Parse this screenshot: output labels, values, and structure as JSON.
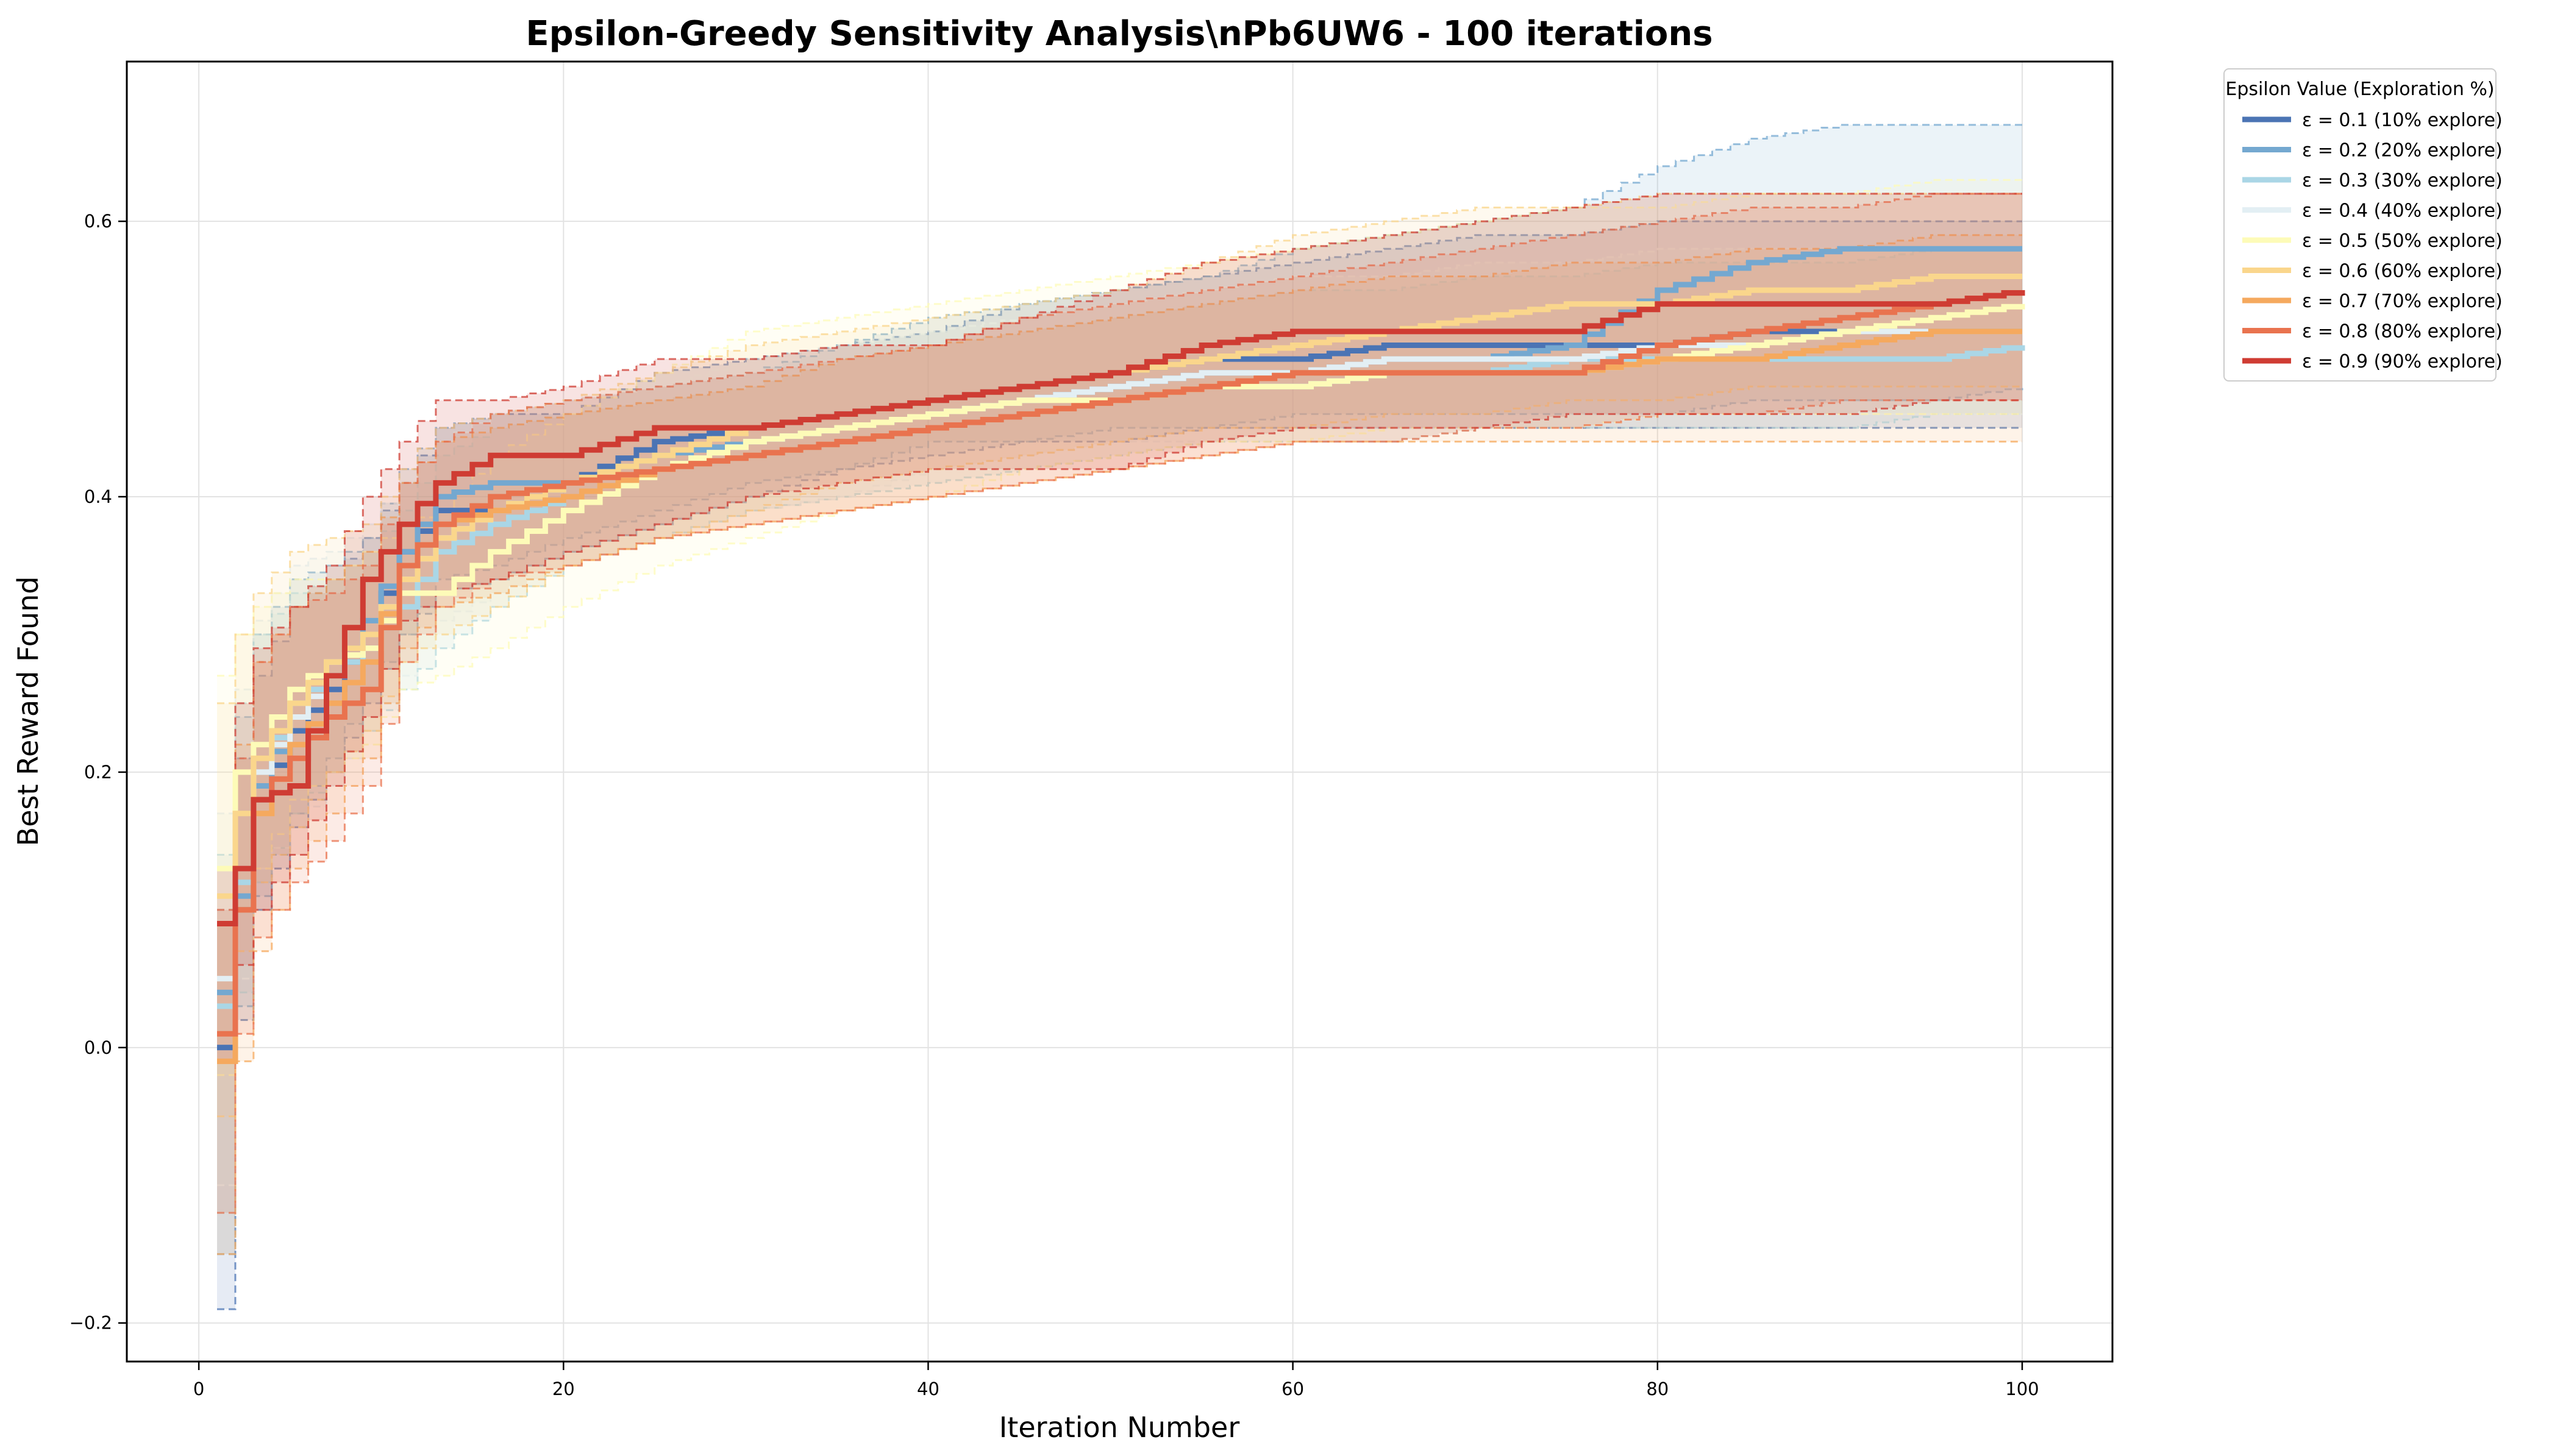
{
  "chart_data": {
    "type": "line",
    "title": "Epsilon-Greedy Sensitivity Analysis\\nPb6UW6 - 100 iterations",
    "xlabel": "Iteration Number",
    "ylabel": "Best Reward Found",
    "xlim": [
      -3.95,
      104.95
    ],
    "ylim": [
      -0.228,
      0.716
    ],
    "xticks": [
      0,
      20,
      40,
      60,
      80,
      100
    ],
    "yticks": [
      -0.2,
      0.0,
      0.2,
      0.4,
      0.6
    ],
    "ytick_labels": [
      "−0.2",
      "0.0",
      "0.2",
      "0.4",
      "0.6"
    ],
    "grid": true,
    "legend": {
      "title": "Epsilon Value (Exploration %)",
      "position": "outside-top-right"
    },
    "x_anchor_iterations": [
      1,
      2,
      3,
      5,
      7,
      9,
      11,
      13,
      16,
      20,
      25,
      30,
      35,
      40,
      45,
      50,
      55,
      60,
      65,
      70,
      75,
      80,
      85,
      90,
      95,
      100
    ],
    "series": [
      {
        "name": "ε = 0.1 (10% explore)",
        "color": "#4b74b4",
        "mean": [
          0.0,
          0.1,
          0.18,
          0.23,
          0.26,
          0.3,
          0.36,
          0.39,
          0.39,
          0.41,
          0.44,
          0.45,
          0.46,
          0.47,
          0.48,
          0.49,
          0.5,
          0.5,
          0.51,
          0.51,
          0.51,
          0.51,
          0.52,
          0.52,
          0.52,
          0.52
        ],
        "upper": [
          0.09,
          0.21,
          0.27,
          0.32,
          0.34,
          0.37,
          0.41,
          0.45,
          0.46,
          0.46,
          0.49,
          0.5,
          0.51,
          0.52,
          0.54,
          0.55,
          0.56,
          0.57,
          0.58,
          0.59,
          0.59,
          0.6,
          0.6,
          0.6,
          0.6,
          0.6
        ],
        "lower": [
          -0.19,
          0.02,
          0.1,
          0.16,
          0.2,
          0.25,
          0.3,
          0.33,
          0.34,
          0.36,
          0.38,
          0.4,
          0.42,
          0.43,
          0.44,
          0.44,
          0.45,
          0.45,
          0.45,
          0.45,
          0.45,
          0.45,
          0.45,
          0.45,
          0.45,
          0.45
        ]
      },
      {
        "name": "ε = 0.2 (20% explore)",
        "color": "#74a8d0",
        "mean": [
          0.04,
          0.11,
          0.19,
          0.24,
          0.27,
          0.31,
          0.36,
          0.4,
          0.41,
          0.41,
          0.43,
          0.44,
          0.45,
          0.46,
          0.47,
          0.48,
          0.49,
          0.49,
          0.5,
          0.5,
          0.51,
          0.55,
          0.57,
          0.58,
          0.58,
          0.58
        ],
        "upper": [
          0.1,
          0.24,
          0.3,
          0.34,
          0.35,
          0.37,
          0.42,
          0.45,
          0.46,
          0.47,
          0.48,
          0.49,
          0.51,
          0.53,
          0.54,
          0.55,
          0.56,
          0.58,
          0.59,
          0.6,
          0.61,
          0.64,
          0.66,
          0.67,
          0.67,
          0.67
        ],
        "lower": [
          -0.15,
          0.03,
          0.11,
          0.17,
          0.21,
          0.26,
          0.3,
          0.34,
          0.35,
          0.37,
          0.39,
          0.41,
          0.42,
          0.44,
          0.44,
          0.45,
          0.45,
          0.46,
          0.46,
          0.46,
          0.46,
          0.46,
          0.47,
          0.47,
          0.47,
          0.48
        ]
      },
      {
        "name": "ε = 0.3 (30% explore)",
        "color": "#aad6e6",
        "mean": [
          0.03,
          0.12,
          0.2,
          0.25,
          0.27,
          0.29,
          0.32,
          0.36,
          0.38,
          0.4,
          0.42,
          0.43,
          0.44,
          0.45,
          0.46,
          0.47,
          0.48,
          0.48,
          0.49,
          0.49,
          0.5,
          0.5,
          0.5,
          0.5,
          0.5,
          0.51
        ],
        "upper": [
          0.14,
          0.25,
          0.3,
          0.33,
          0.34,
          0.36,
          0.39,
          0.43,
          0.45,
          0.46,
          0.47,
          0.48,
          0.5,
          0.51,
          0.52,
          0.53,
          0.54,
          0.55,
          0.55,
          0.56,
          0.56,
          0.57,
          0.57,
          0.57,
          0.58,
          0.58
        ],
        "lower": [
          -0.12,
          0.04,
          0.12,
          0.17,
          0.2,
          0.23,
          0.26,
          0.29,
          0.32,
          0.35,
          0.37,
          0.39,
          0.4,
          0.41,
          0.42,
          0.43,
          0.44,
          0.44,
          0.44,
          0.45,
          0.45,
          0.45,
          0.45,
          0.45,
          0.46,
          0.46
        ]
      },
      {
        "name": "ε = 0.4 (40% explore)",
        "color": "#e3eff4",
        "mean": [
          0.05,
          0.13,
          0.2,
          0.24,
          0.27,
          0.3,
          0.34,
          0.37,
          0.39,
          0.41,
          0.42,
          0.44,
          0.45,
          0.46,
          0.47,
          0.48,
          0.49,
          0.49,
          0.5,
          0.5,
          0.5,
          0.51,
          0.51,
          0.52,
          0.52,
          0.52
        ],
        "upper": [
          0.17,
          0.26,
          0.31,
          0.35,
          0.36,
          0.38,
          0.41,
          0.44,
          0.46,
          0.47,
          0.48,
          0.5,
          0.51,
          0.52,
          0.53,
          0.54,
          0.55,
          0.56,
          0.56,
          0.57,
          0.57,
          0.58,
          0.58,
          0.58,
          0.58,
          0.58
        ],
        "lower": [
          -0.1,
          0.05,
          0.13,
          0.16,
          0.19,
          0.23,
          0.27,
          0.31,
          0.33,
          0.35,
          0.37,
          0.39,
          0.4,
          0.42,
          0.43,
          0.44,
          0.44,
          0.45,
          0.45,
          0.45,
          0.46,
          0.46,
          0.46,
          0.46,
          0.46,
          0.46
        ]
      },
      {
        "name": "ε = 0.5 (50% explore)",
        "color": "#fdfbb8",
        "mean": [
          0.13,
          0.2,
          0.22,
          0.26,
          0.28,
          0.29,
          0.33,
          0.33,
          0.36,
          0.39,
          0.42,
          0.44,
          0.45,
          0.46,
          0.47,
          0.47,
          0.48,
          0.48,
          0.49,
          0.49,
          0.49,
          0.5,
          0.51,
          0.52,
          0.53,
          0.54
        ],
        "upper": [
          0.27,
          0.3,
          0.32,
          0.34,
          0.34,
          0.36,
          0.38,
          0.39,
          0.43,
          0.46,
          0.49,
          0.52,
          0.53,
          0.54,
          0.55,
          0.56,
          0.57,
          0.58,
          0.59,
          0.6,
          0.61,
          0.61,
          0.62,
          0.62,
          0.63,
          0.63
        ],
        "lower": [
          -0.02,
          0.1,
          0.13,
          0.18,
          0.2,
          0.22,
          0.26,
          0.27,
          0.29,
          0.32,
          0.35,
          0.37,
          0.39,
          0.4,
          0.42,
          0.43,
          0.44,
          0.44,
          0.45,
          0.45,
          0.45,
          0.46,
          0.46,
          0.46,
          0.46,
          0.46
        ]
      },
      {
        "name": "ε = 0.6 (60% explore)",
        "color": "#fad68c",
        "mean": [
          0.11,
          0.17,
          0.21,
          0.25,
          0.28,
          0.3,
          0.34,
          0.37,
          0.39,
          0.41,
          0.43,
          0.45,
          0.46,
          0.47,
          0.48,
          0.49,
          0.5,
          0.51,
          0.52,
          0.53,
          0.54,
          0.54,
          0.55,
          0.55,
          0.56,
          0.56
        ],
        "upper": [
          0.25,
          0.3,
          0.33,
          0.36,
          0.37,
          0.38,
          0.42,
          0.45,
          0.46,
          0.47,
          0.49,
          0.51,
          0.52,
          0.53,
          0.54,
          0.55,
          0.57,
          0.59,
          0.6,
          0.61,
          0.61,
          0.62,
          0.62,
          0.62,
          0.62,
          0.62
        ],
        "lower": [
          -0.05,
          0.07,
          0.12,
          0.16,
          0.2,
          0.23,
          0.28,
          0.3,
          0.32,
          0.35,
          0.37,
          0.39,
          0.41,
          0.42,
          0.43,
          0.44,
          0.45,
          0.45,
          0.46,
          0.46,
          0.47,
          0.47,
          0.48,
          0.48,
          0.48,
          0.48
        ]
      },
      {
        "name": "ε = 0.7 (70% explore)",
        "color": "#f5a95e",
        "mean": [
          -0.01,
          0.1,
          0.17,
          0.22,
          0.25,
          0.28,
          0.35,
          0.38,
          0.39,
          0.4,
          0.42,
          0.43,
          0.44,
          0.45,
          0.46,
          0.47,
          0.48,
          0.49,
          0.49,
          0.49,
          0.49,
          0.5,
          0.5,
          0.51,
          0.52,
          0.52
        ],
        "upper": [
          0.09,
          0.22,
          0.28,
          0.32,
          0.34,
          0.36,
          0.41,
          0.44,
          0.45,
          0.46,
          0.47,
          0.48,
          0.5,
          0.51,
          0.52,
          0.53,
          0.54,
          0.55,
          0.56,
          0.56,
          0.57,
          0.57,
          0.58,
          0.58,
          0.59,
          0.59
        ],
        "lower": [
          -0.15,
          -0.01,
          0.07,
          0.13,
          0.17,
          0.21,
          0.29,
          0.32,
          0.33,
          0.35,
          0.37,
          0.38,
          0.39,
          0.4,
          0.41,
          0.42,
          0.43,
          0.44,
          0.44,
          0.44,
          0.44,
          0.44,
          0.44,
          0.44,
          0.44,
          0.44
        ]
      },
      {
        "name": "ε = 0.8 (80% explore)",
        "color": "#e9734f",
        "mean": [
          0.01,
          0.1,
          0.18,
          0.21,
          0.24,
          0.26,
          0.35,
          0.38,
          0.4,
          0.41,
          0.42,
          0.43,
          0.44,
          0.45,
          0.46,
          0.47,
          0.48,
          0.49,
          0.49,
          0.49,
          0.49,
          0.51,
          0.52,
          0.53,
          0.54,
          0.55
        ],
        "upper": [
          0.1,
          0.21,
          0.28,
          0.32,
          0.33,
          0.35,
          0.41,
          0.44,
          0.46,
          0.47,
          0.48,
          0.49,
          0.5,
          0.51,
          0.53,
          0.54,
          0.55,
          0.56,
          0.57,
          0.58,
          0.59,
          0.6,
          0.61,
          0.61,
          0.62,
          0.62
        ],
        "lower": [
          -0.12,
          0.01,
          0.08,
          0.12,
          0.15,
          0.19,
          0.28,
          0.32,
          0.34,
          0.35,
          0.37,
          0.38,
          0.39,
          0.4,
          0.41,
          0.42,
          0.43,
          0.44,
          0.44,
          0.45,
          0.45,
          0.46,
          0.46,
          0.47,
          0.47,
          0.47
        ]
      },
      {
        "name": "ε = 0.9 (90% explore)",
        "color": "#cf3c33",
        "mean": [
          0.09,
          0.13,
          0.18,
          0.19,
          0.27,
          0.34,
          0.38,
          0.41,
          0.43,
          0.43,
          0.45,
          0.45,
          0.46,
          0.47,
          0.48,
          0.49,
          0.51,
          0.52,
          0.52,
          0.52,
          0.52,
          0.54,
          0.54,
          0.54,
          0.54,
          0.55
        ],
        "upper": [
          0.13,
          0.25,
          0.29,
          0.32,
          0.35,
          0.4,
          0.44,
          0.47,
          0.47,
          0.48,
          0.5,
          0.5,
          0.51,
          0.51,
          0.53,
          0.55,
          0.57,
          0.58,
          0.59,
          0.6,
          0.61,
          0.62,
          0.62,
          0.62,
          0.62,
          0.62
        ],
        "lower": [
          -0.01,
          0.06,
          0.1,
          0.14,
          0.19,
          0.24,
          0.31,
          0.33,
          0.34,
          0.36,
          0.38,
          0.4,
          0.41,
          0.42,
          0.41,
          0.42,
          0.44,
          0.45,
          0.45,
          0.45,
          0.46,
          0.46,
          0.46,
          0.46,
          0.47,
          0.47
        ]
      }
    ]
  }
}
